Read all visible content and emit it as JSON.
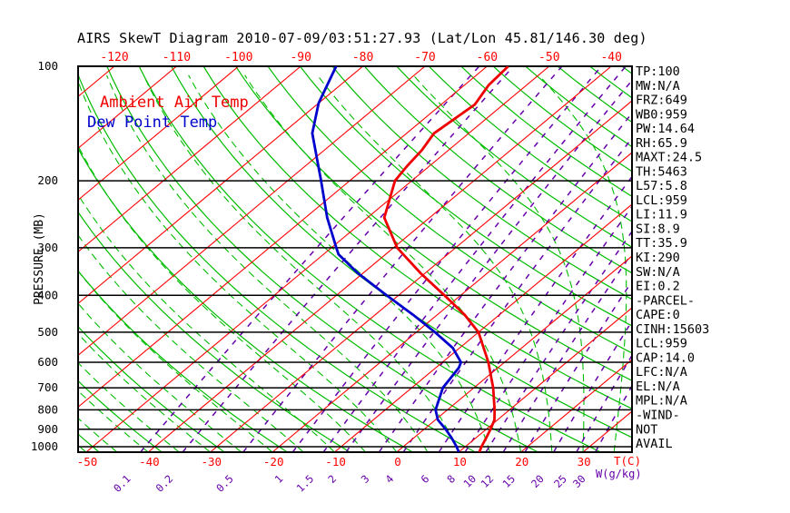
{
  "title": "AIRS SkewT Diagram 2010-07-09/03:51:27.93 (Lat/Lon 45.81/146.30 deg)",
  "legend": {
    "temp": "Ambient Air Temp",
    "dewpoint": "Dew Point Temp"
  },
  "axes": {
    "pressure_label": "PRESSURE (MB)",
    "temp_axis_label": "T(C)",
    "mixing_axis_label": "W(g/kg)",
    "pressure_ticks": [
      100,
      200,
      300,
      400,
      500,
      600,
      700,
      800,
      900,
      1000
    ],
    "top_temp_ticks": [
      -120,
      -110,
      -100,
      -90,
      -80,
      -70,
      -60,
      -50,
      -40
    ],
    "bottom_temp_ticks": [
      -50,
      -40,
      -30,
      -20,
      -10,
      0,
      10,
      20,
      30
    ],
    "mixing_ratio_ticks": [
      0.1,
      0.2,
      0.5,
      1,
      1.5,
      2,
      3,
      4,
      6,
      8,
      10,
      12,
      15,
      20,
      25,
      30
    ]
  },
  "stats": [
    "TP:100",
    "MW:N/A",
    "FRZ:649",
    "WB0:959",
    "PW:14.64",
    "RH:65.9",
    "MAXT:24.5",
    "TH:5463",
    "L57:5.8",
    "LCL:959",
    "LI:11.9",
    "SI:8.9",
    "TT:35.9",
    "KI:290",
    "SW:N/A",
    "EI:0.2",
    "-PARCEL-",
    "CAPE:0",
    "CINH:15603",
    "LCL:959",
    "CAP:14.0",
    "LFC:N/A",
    "EL:N/A",
    "MPL:N/A",
    "-WIND-",
    "NOT",
    "AVAIL"
  ],
  "colors": {
    "isotherm": "#ff0000",
    "isobar": "#000000",
    "dry_adiabat": "#00bc00",
    "moist_adiabat": "#00bc00",
    "mixing_ratio": "#6600aa",
    "temp_curve": "#ee0000",
    "dewpoint_curve": "#0000cc",
    "text": "#000000"
  },
  "chart_data": {
    "type": "line",
    "title": "AIRS SkewT Diagram 2010-07-09/03:51:27.93 (Lat/Lon 45.81/146.30 deg)",
    "xlabel": "Temperature (C), skewed isotherms",
    "ylabel": "Pressure (MB), logarithmic inverted",
    "pressure_range": [
      100,
      1033
    ],
    "grid": {
      "isotherm_step_c": 10,
      "isotherm_range_c": [
        -160,
        40
      ],
      "dry_adiabat_theta_c": {
        "from": -60,
        "to": 180,
        "step": 10
      },
      "moist_adiabat_surface_t_c": {
        "from": -50,
        "to": 40,
        "step": 5
      },
      "mixing_ratio_g_kg": [
        0.1,
        0.2,
        0.5,
        1,
        1.5,
        2,
        3,
        4,
        6,
        8,
        10,
        12,
        15,
        20,
        25,
        30
      ]
    },
    "series": [
      {
        "name": "Ambient Air Temp",
        "color": "#ee0000",
        "points_p_t": [
          [
            100,
            -56.6
          ],
          [
            112,
            -56.1
          ],
          [
            126,
            -54.6
          ],
          [
            150,
            -55.6
          ],
          [
            166,
            -54.3
          ],
          [
            183,
            -53.6
          ],
          [
            200,
            -52.7
          ],
          [
            250,
            -47.3
          ],
          [
            300,
            -39.4
          ],
          [
            350,
            -30.7
          ],
          [
            400,
            -22.6
          ],
          [
            450,
            -15.6
          ],
          [
            500,
            -10.0
          ],
          [
            600,
            -2.6
          ],
          [
            700,
            3.1
          ],
          [
            800,
            7.6
          ],
          [
            850,
            9.5
          ],
          [
            900,
            10.7
          ],
          [
            950,
            11.7
          ],
          [
            1000,
            12.6
          ],
          [
            1033,
            13.3
          ]
        ]
      },
      {
        "name": "Dew Point Temp",
        "color": "#0000cc",
        "points_p_t": [
          [
            100,
            -84.3
          ],
          [
            125,
            -80.0
          ],
          [
            150,
            -75.2
          ],
          [
            200,
            -64.6
          ],
          [
            250,
            -56.5
          ],
          [
            300,
            -49.2
          ],
          [
            312,
            -47.6
          ],
          [
            350,
            -40.8
          ],
          [
            400,
            -31.9
          ],
          [
            450,
            -23.9
          ],
          [
            500,
            -17.0
          ],
          [
            550,
            -11.1
          ],
          [
            600,
            -7.0
          ],
          [
            620,
            -6.3
          ],
          [
            700,
            -5.0
          ],
          [
            800,
            -1.9
          ],
          [
            850,
            0.4
          ],
          [
            900,
            3.5
          ],
          [
            950,
            6.2
          ],
          [
            1000,
            8.6
          ],
          [
            1033,
            10.0
          ]
        ]
      }
    ]
  }
}
